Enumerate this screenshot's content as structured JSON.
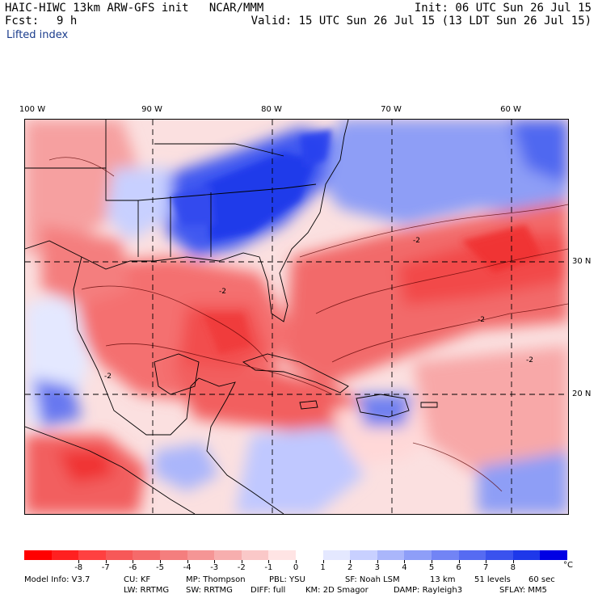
{
  "header": {
    "title": "HAIC-HIWC 13km ARW-GFS init   NCAR/MMM",
    "init": "Init: 06 UTC Sun 26 Jul 15",
    "fcst_label": "Fcst:",
    "fcst_value": "9 h",
    "valid": "Valid: 15 UTC Sun 26 Jul 15 (13 LDT Sun 26 Jul 15)",
    "field": "Lifted index"
  },
  "map": {
    "variable": "Lifted index",
    "region": "Gulf of Mexico / Caribbean / western Atlantic",
    "lon_labels": [
      "100 W",
      "90 W",
      "80 W",
      "70 W",
      "60 W"
    ],
    "lat_labels": [
      "30 N",
      "20 N"
    ],
    "contour_labels": [
      "-2",
      "-2",
      "-2",
      "-2",
      "-2"
    ],
    "colors": {
      "strong_positive": "#0000e0",
      "positive": "#8090f0",
      "weak_positive": "#d0d8ff",
      "neutral": "#ffffff",
      "weak_negative": "#ffc8c8",
      "negative": "#f07070",
      "strong_negative": "#ff0000"
    }
  },
  "colorbar": {
    "labels": [
      "-8",
      "-7",
      "-6",
      "-5",
      "-4",
      "-3",
      "-2",
      "-1",
      "0",
      "1",
      "2",
      "3",
      "4",
      "5",
      "6",
      "7",
      "8"
    ],
    "unit": "°C",
    "colors": [
      "#ff0000",
      "#ff2020",
      "#ff4040",
      "#f75858",
      "#f56a6a",
      "#f47e7e",
      "#f59595",
      "#f7aeae",
      "#fac8c8",
      "#ffe4e4",
      "#ffffff",
      "#e4e8ff",
      "#c8d0ff",
      "#aab6fb",
      "#8e9ef8",
      "#7284f5",
      "#566bf2",
      "#3a52ee",
      "#1e38ea",
      "#0000e4"
    ]
  },
  "footer": {
    "line1": [
      "Model Info: V3.7",
      "CU: KF",
      "MP: Thompson",
      "PBL: YSU",
      "SF: Noah LSM",
      "13 km",
      "51 levels",
      "60 sec"
    ],
    "line2": [
      "LW: RRTMG",
      "SW: RRTMG",
      "DIFF: full",
      "KM: 2D Smagor",
      "DAMP: Rayleigh3",
      "SFLAY: MM5"
    ]
  }
}
